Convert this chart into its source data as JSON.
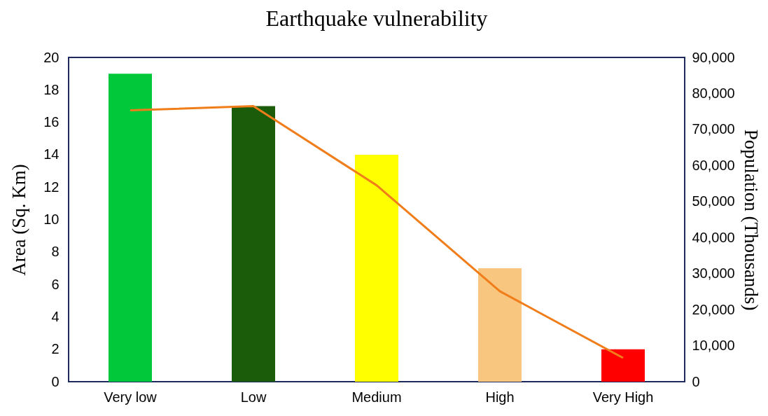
{
  "chart_data": {
    "type": "bar",
    "title": "Earthquake vulnerability",
    "ylabel": "Area (Sq. Km)",
    "y2label": "Population (Thousands)",
    "categories": [
      "Very low",
      "Low",
      "Medium",
      "High",
      "Very High"
    ],
    "series": [
      {
        "colors": [
          "#00c83a",
          "#1a5c0a",
          "#ffff00",
          "#f8c67e",
          "#ff0000"
        ],
        "values": [
          19,
          17,
          14,
          7,
          2
        ]
      },
      {
        "type": "line",
        "axis": "y2",
        "color": "#f07d1a",
        "values": [
          75300,
          76500,
          54500,
          25100,
          6600
        ]
      }
    ],
    "ylim": [
      0,
      20
    ],
    "yticks": [
      0,
      2,
      4,
      6,
      8,
      10,
      12,
      14,
      16,
      18,
      20
    ],
    "y2lim": [
      0,
      90000
    ],
    "y2ticks": [
      0,
      {
        "value": 10000,
        "label": "10,000"
      },
      {
        "value": 20000,
        "label": "20,000"
      },
      {
        "value": 30000,
        "label": "30,000"
      },
      {
        "value": 40000,
        "label": "40,000"
      },
      {
        "value": 50000,
        "label": "50,000"
      },
      {
        "value": 60000,
        "label": "60,000"
      },
      {
        "value": 70000,
        "label": "70,000"
      },
      {
        "value": 80000,
        "label": "80,000"
      },
      {
        "value": 90000,
        "label": "90,000"
      }
    ],
    "grid": false
  }
}
